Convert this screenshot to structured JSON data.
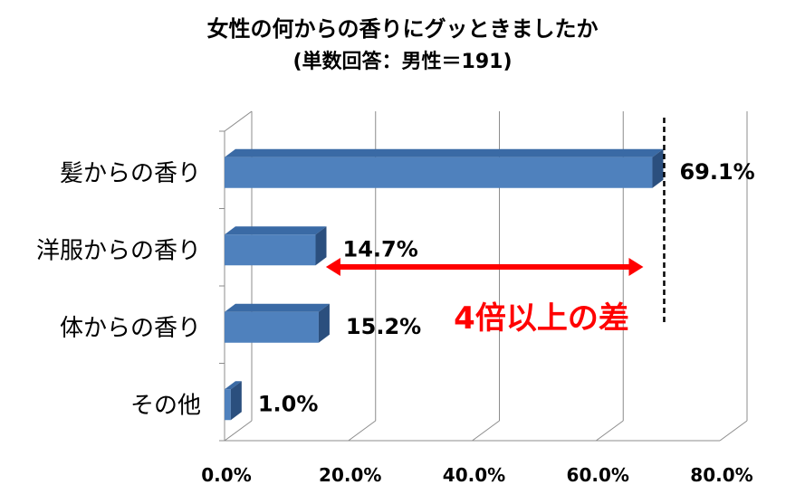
{
  "chart_data": {
    "type": "bar",
    "orientation": "horizontal",
    "title": "女性の何からの香りにグッときましたか",
    "subtitle": "(単数回答：男性＝191)",
    "categories": [
      "髪からの香り",
      "洋服からの香り",
      "体からの香り",
      "その他"
    ],
    "values": [
      69.1,
      14.7,
      15.2,
      1.0
    ],
    "value_labels": [
      "69.1%",
      "14.7%",
      "15.2%",
      "1.0%"
    ],
    "x_ticks": [
      "0.0%",
      "20.0%",
      "40.0%",
      "60.0%",
      "80.0%"
    ],
    "xlim": [
      0,
      80
    ],
    "grid": true,
    "bar_color": "#4f81bd",
    "annotation": {
      "text": "4倍以上の差",
      "color": "#ff0000",
      "arrow_from": 15.2,
      "arrow_to": 69.1
    }
  }
}
